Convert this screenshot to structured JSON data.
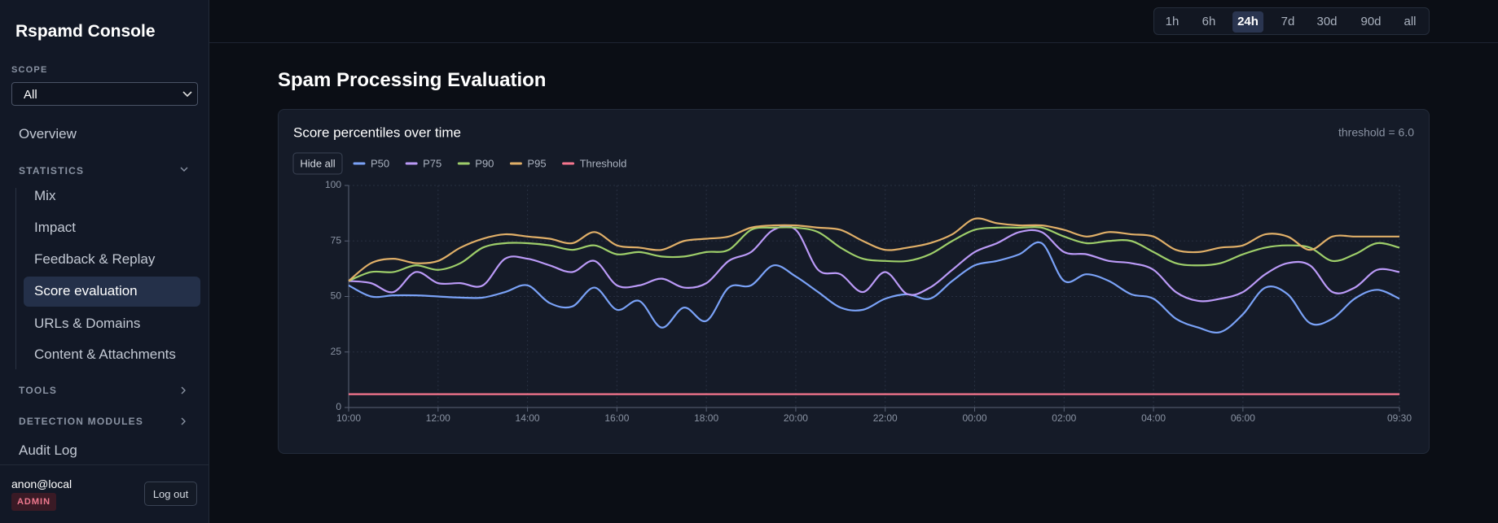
{
  "sidebar": {
    "brand": "Rspamd Console",
    "scope_label": "SCOPE",
    "scope_value": "All",
    "overview": "Overview",
    "statistics": "STATISTICS",
    "statistics_items": [
      "Mix",
      "Impact",
      "Feedback & Replay",
      "Score evaluation",
      "URLs & Domains",
      "Content & Attachments"
    ],
    "tools": "TOOLS",
    "detection_modules": "DETECTION MODULES",
    "audit_log": "Audit Log",
    "user": "anon@local",
    "role": "ADMIN",
    "logout": "Log out"
  },
  "time_ranges": [
    "1h",
    "6h",
    "24h",
    "7d",
    "30d",
    "90d",
    "all"
  ],
  "active_range": "24h",
  "page_title": "Spam Processing Evaluation",
  "chart_data": {
    "type": "line",
    "title": "Score percentiles over time",
    "annotation": "threshold = 6.0",
    "hide_all": "Hide all",
    "categories": [
      "10:00",
      null,
      null,
      null,
      "12:00",
      null,
      null,
      null,
      "14:00",
      null,
      null,
      null,
      "16:00",
      null,
      null,
      null,
      "18:00",
      null,
      null,
      null,
      "20:00",
      null,
      null,
      null,
      "22:00",
      null,
      null,
      null,
      "00:00",
      null,
      null,
      null,
      "02:00",
      null,
      null,
      null,
      "04:00",
      null,
      null,
      null,
      "06:00",
      null,
      null,
      null,
      null,
      null,
      null,
      "09:30"
    ],
    "series": [
      {
        "name": "P50",
        "color": "#7aa2f7",
        "values": [
          55,
          50,
          50.5,
          50.5,
          50,
          49.5,
          49.5,
          52,
          55,
          47,
          45.5,
          54,
          44,
          48,
          36,
          45,
          39,
          54,
          55,
          64,
          59,
          52,
          45,
          44,
          49,
          51,
          49,
          57,
          64,
          66,
          69,
          74,
          57,
          60,
          57,
          51,
          49,
          40,
          36,
          34,
          42,
          54,
          51,
          38,
          40,
          49,
          53,
          49
        ]
      },
      {
        "name": "P75",
        "color": "#bb9af7",
        "values": [
          57,
          56,
          52,
          61,
          56,
          56,
          55,
          67,
          67,
          64,
          61,
          66,
          55,
          55,
          58,
          54,
          56,
          66,
          70,
          80,
          80,
          62,
          60,
          52,
          61,
          51,
          54,
          62,
          70,
          74,
          79,
          79,
          70,
          69,
          66,
          65,
          62,
          52,
          48,
          49,
          52,
          60,
          65,
          64,
          52,
          54,
          62,
          61
        ]
      },
      {
        "name": "P90",
        "color": "#9ece6a",
        "values": [
          57,
          61,
          61,
          64,
          62,
          65,
          72,
          74,
          74,
          73,
          71,
          73,
          69,
          70,
          68,
          68,
          70,
          71,
          80,
          81,
          81,
          79,
          72,
          67,
          66,
          66,
          69,
          75,
          80,
          81,
          81,
          81,
          77,
          74,
          75,
          75,
          70,
          65,
          64,
          65,
          69,
          72,
          73,
          72,
          66,
          69,
          74,
          72
        ]
      },
      {
        "name": "P95",
        "color": "#e0af68",
        "values": [
          57,
          65,
          67,
          65,
          66,
          72,
          76,
          78,
          77,
          76,
          74,
          79,
          73,
          72,
          71,
          75,
          76,
          77,
          81,
          82,
          82,
          81,
          80,
          75,
          71,
          72,
          74,
          78,
          85,
          83,
          82,
          82,
          80,
          77,
          79,
          78,
          77,
          71,
          70,
          72,
          73,
          78,
          77,
          71,
          77,
          77,
          77,
          77
        ]
      },
      {
        "name": "Threshold",
        "color": "#f7768e",
        "values": [
          6,
          6,
          6,
          6,
          6,
          6,
          6,
          6,
          6,
          6,
          6,
          6,
          6,
          6,
          6,
          6,
          6,
          6,
          6,
          6,
          6,
          6,
          6,
          6,
          6,
          6,
          6,
          6,
          6,
          6,
          6,
          6,
          6,
          6,
          6,
          6,
          6,
          6,
          6,
          6,
          6,
          6,
          6,
          6,
          6,
          6,
          6,
          6
        ]
      }
    ],
    "ylim": [
      0,
      100
    ],
    "yticks": [
      0,
      25,
      50,
      75,
      100
    ],
    "grid": true
  }
}
